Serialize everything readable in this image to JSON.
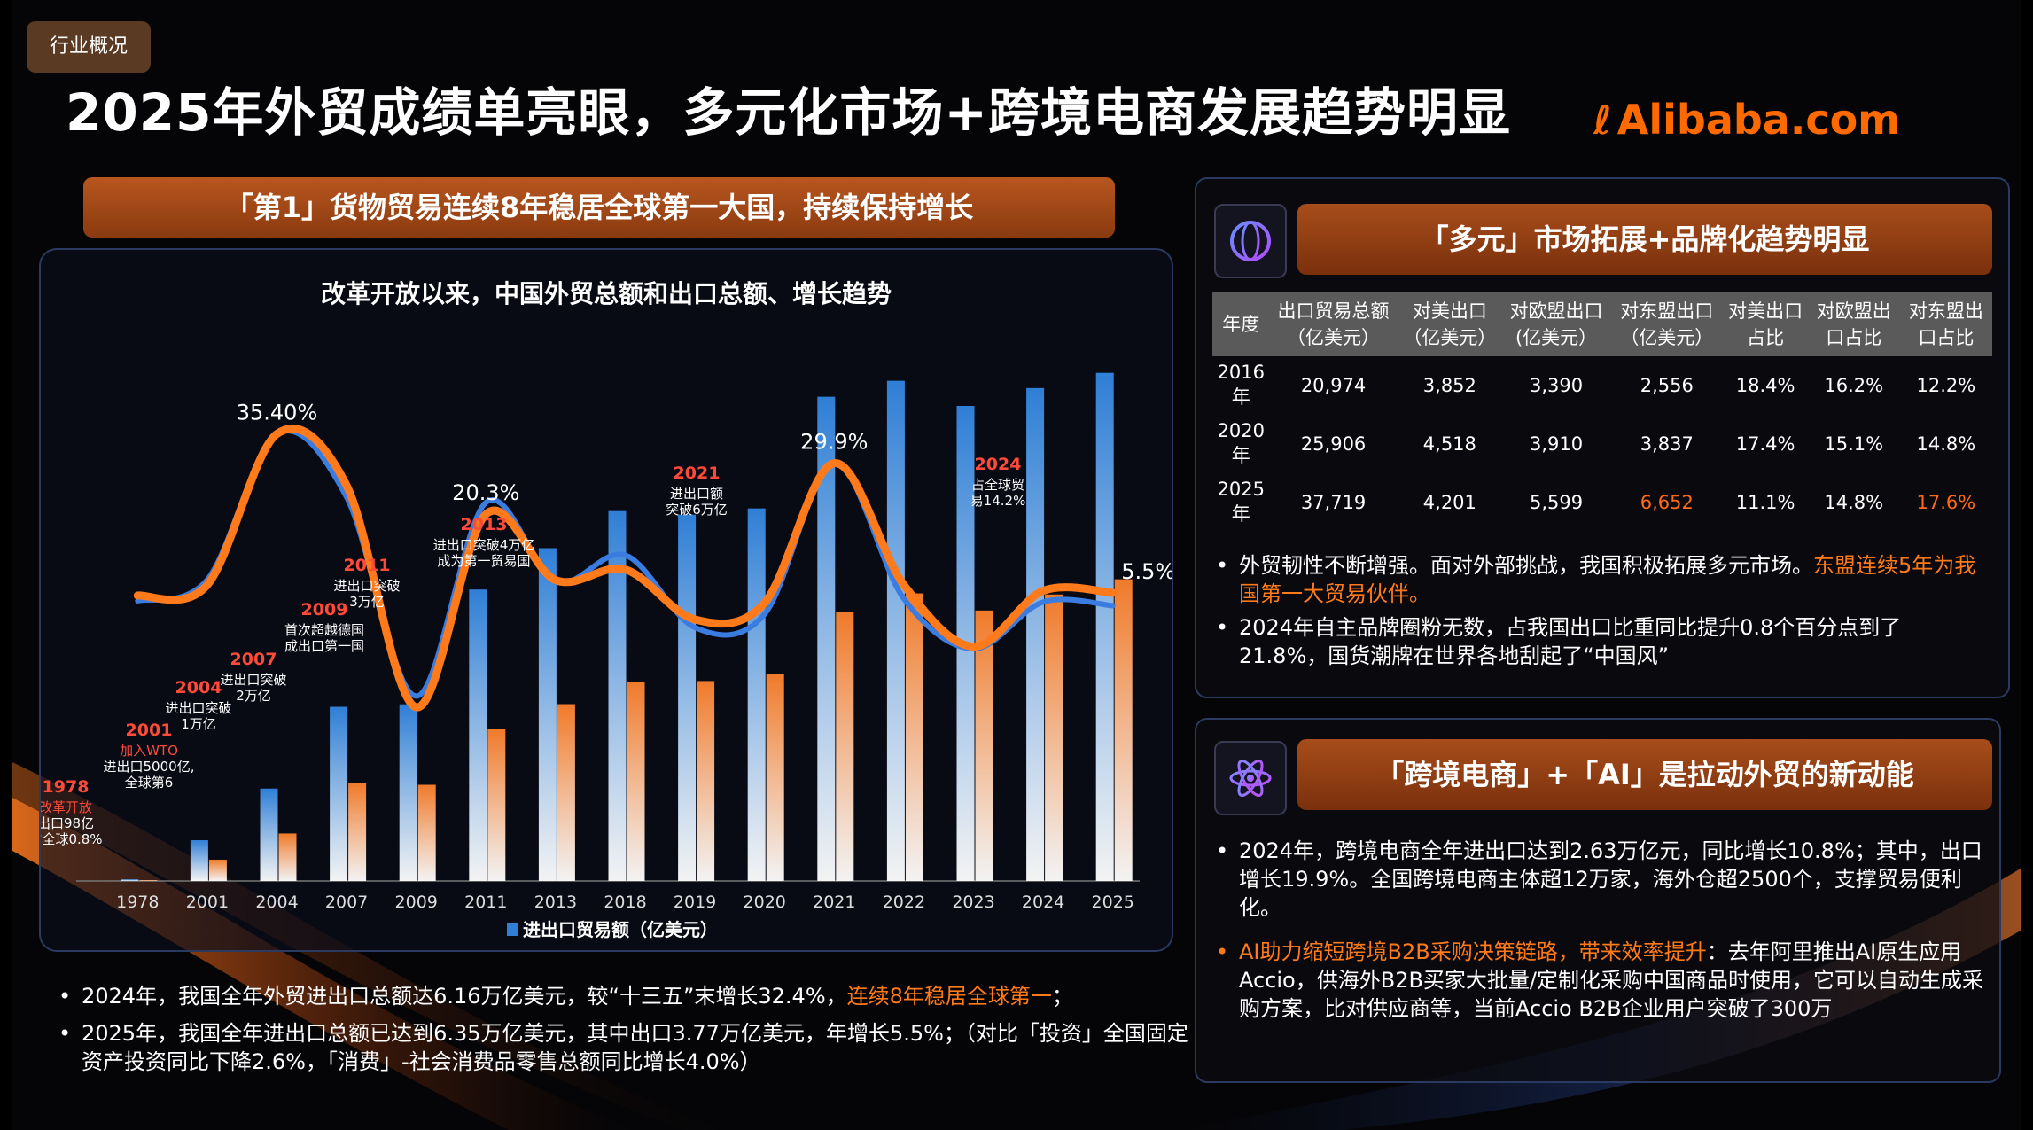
{
  "tag": "行业概况",
  "title": "2025年外贸成绩单亮眼，多元化市场+跨境电商发展趋势明显",
  "logo_text": "Alibaba.com",
  "left_banner": "「第1」货物贸易连续8年稳居全球第一大国，持续保持增长",
  "chart_data": {
    "type": "bar",
    "title": "改革开放以来，中国外贸总额和出口总额、增长趋势",
    "categories": [
      "1978",
      "2001",
      "2004",
      "2007",
      "2009",
      "2011",
      "2013",
      "2018",
      "2019",
      "2020",
      "2021",
      "2022",
      "2023",
      "2024",
      "2025"
    ],
    "series": [
      {
        "name": "进出口贸易额（亿美元）",
        "values": [
          206,
          5097,
          11546,
          21761,
          22075,
          36419,
          41590,
          46224,
          45778,
          46559,
          60515,
          62509,
          59368,
          61600,
          63500
        ],
        "color": "#2f7fd6"
      },
      {
        "values": [
          98,
          2661,
          5933,
          12204,
          12016,
          18984,
          22096,
          24867,
          24985,
          25900,
          33640,
          35936,
          33800,
          35800,
          37700
        ],
        "color": "#f07a2a"
      }
    ],
    "growth_lines": [
      {
        "values": [
          4,
          8,
          35.4,
          23.5,
          -13.9,
          22.5,
          7.6,
          12.6,
          -1.0,
          1.5,
          29.9,
          4.4,
          -5.0,
          3.8,
          3.1
        ],
        "color": "#3a7ce0"
      },
      {
        "values": [
          5,
          7,
          35.4,
          25.7,
          -16.0,
          20.3,
          7.9,
          9.9,
          0.5,
          3.6,
          29.9,
          7.0,
          -4.6,
          5.9,
          5.5
        ],
        "color": "#ff7a1a"
      }
    ],
    "value_labels": [
      {
        "index": 2,
        "text": "35.40%"
      },
      {
        "index": 5,
        "text": "20.3%"
      },
      {
        "index": 10,
        "text": "29.9%"
      },
      {
        "index": 14,
        "text": "5.5%"
      }
    ],
    "milestones": [
      {
        "index": 0,
        "year": "1978",
        "lines": [
          "改革开放",
          "出口98亿",
          "占全球0.8%"
        ]
      },
      {
        "index": 1,
        "year": "2001",
        "lines": [
          "加入WTO",
          "进出口5000亿,",
          "全球第6"
        ]
      },
      {
        "index": 2,
        "year": "2004",
        "lines": [
          "进出口突破",
          "1万亿"
        ]
      },
      {
        "index": 3,
        "year": "2007",
        "lines": [
          "进出口突破",
          "2万亿"
        ]
      },
      {
        "index": 4,
        "year": "2009",
        "lines": [
          "首次超越德国",
          "成出口第一国"
        ]
      },
      {
        "index": 5,
        "year": "2011",
        "lines": [
          "进出口突破",
          "3万亿"
        ]
      },
      {
        "index": 6,
        "year": "2013",
        "lines": [
          "进出口突破4万亿",
          "成为第一贸易国"
        ]
      },
      {
        "index": 10,
        "year": "2021",
        "lines": [
          "进出口额",
          "突破6万亿"
        ]
      },
      {
        "index": 13,
        "year": "2024",
        "lines": [
          "占全球贸",
          "易14.2%"
        ]
      }
    ],
    "ylim": [
      0,
      70000
    ],
    "legend": "bottom"
  },
  "left_bullets": [
    {
      "pre": "2024年，我国全年外贸进出口总额达6.16万亿美元，较“十三五”末增长32.4%，",
      "hl": "连续8年稳居全球第一",
      "post": "；"
    },
    {
      "pre": "2025年，我国全年进出口总额已达到6.35万亿美元，其中出口3.77万亿美元，年增长5.5%；（对比「投资」全国固定资产投资同比下降2.6%，「消费」-社会消费品零售总额同比增长4.0%）",
      "hl": "",
      "post": ""
    }
  ],
  "panel1": {
    "banner": "「多元」市场拓展+品牌化趋势明显",
    "icon": "globe-icon",
    "headers": [
      "年度",
      "出口贸易总额（亿美元）",
      "对美出口（亿美元）",
      "对欧盟出口(亿美元）",
      "对东盟出口（亿美元）",
      "对美出口占比",
      "对欧盟出口占比",
      "对东盟出口占比"
    ],
    "rows": [
      [
        "2016年",
        "20,974",
        "3,852",
        "3,390",
        "2,556",
        "18.4%",
        "16.2%",
        "12.2%"
      ],
      [
        "2020年",
        "25,906",
        "4,518",
        "3,910",
        "3,837",
        "17.4%",
        "15.1%",
        "14.8%"
      ],
      [
        "2025年",
        "37,719",
        "4,201",
        "5,599",
        "6,652",
        "11.1%",
        "14.8%",
        "17.6%"
      ]
    ],
    "highlight_color": "#ff6a1a",
    "bullets": [
      {
        "pre": "外贸韧性不断增强。面对外部挑战，我国积极拓展多元市场。",
        "hl": "东盟连续5年为我国第一大贸易伙伴。"
      },
      {
        "pre": "2024年自主品牌圈粉无数，占我国出口比重同比提升0.8个百分点到了21.8%，国货潮牌在世界各地刮起了“中国风”",
        "hl": ""
      }
    ]
  },
  "panel2": {
    "banner": "「跨境电商」+「AI」是拉动外贸的新动能",
    "icon": "atom-icon",
    "bullets": [
      {
        "hl": "",
        "post": "2024年，跨境电商全年进出口达到2.63万亿元，同比增长10.8%；其中，出口增长19.9%。全国跨境电商主体超12万家，海外仓超2500个，支撑贸易便利化。"
      },
      {
        "hl": "AI助力缩短跨境B2B采购决策链路，带来效率提升",
        "post": "：去年阿里推出AI原生应用Accio，供海外B2B买家大批量/定制化采购中国商品时使用，它可以自动生成采购方案，比对供应商等，当前Accio B2B企业用户突破了300万"
      }
    ]
  }
}
